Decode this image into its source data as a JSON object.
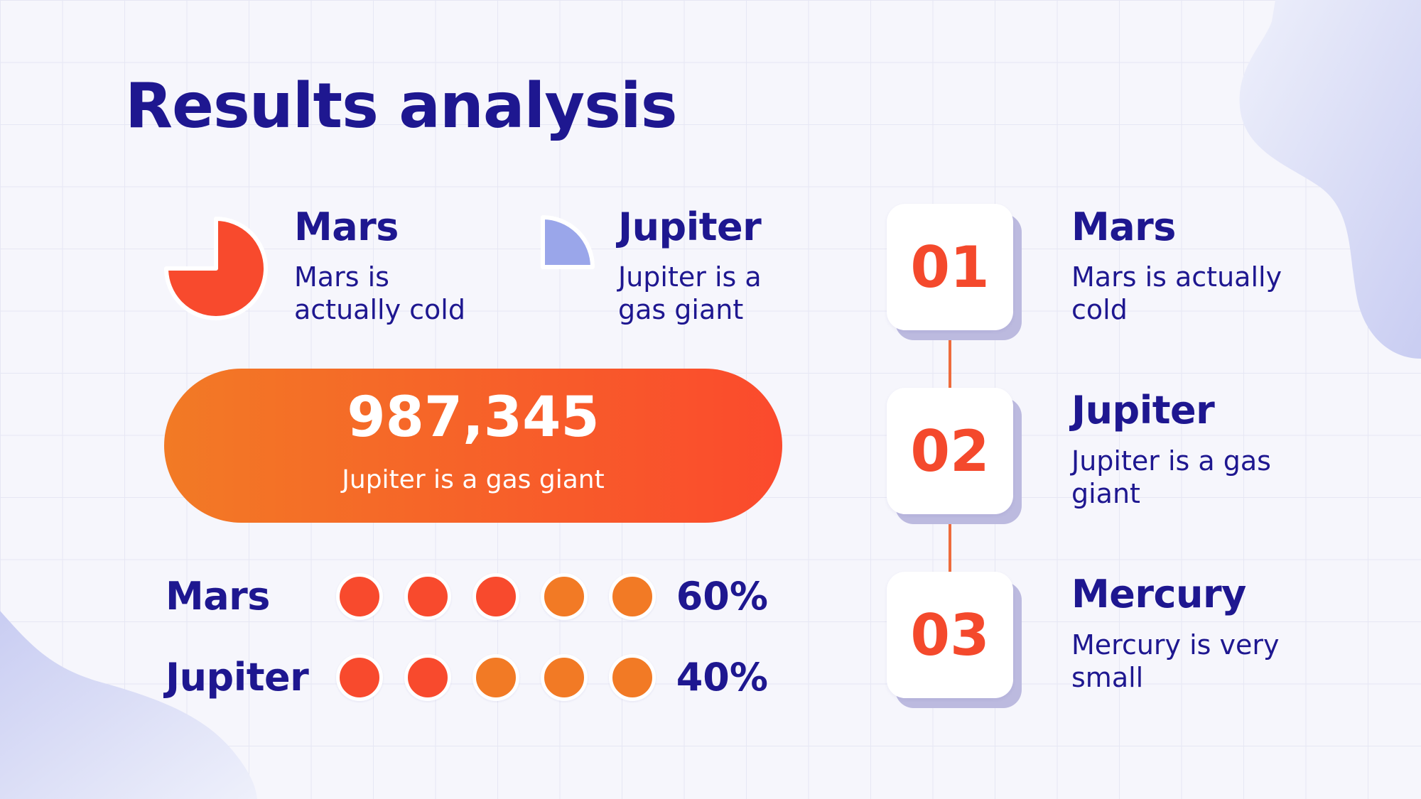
{
  "slide": {
    "title": "Results analysis"
  },
  "pie_items": [
    {
      "title": "Mars",
      "description": "Mars is actually cold",
      "fraction": 0.75,
      "color": "#f84a2d"
    },
    {
      "title": "Jupiter",
      "description": "Jupiter is a gas giant",
      "fraction": 0.25,
      "color": "#9aa6ea"
    }
  ],
  "highlight": {
    "value": "987,345",
    "label": "Jupiter is a gas giant"
  },
  "dot_rows": [
    {
      "label": "Mars",
      "percent": "60%",
      "filled": 3,
      "total": 5
    },
    {
      "label": "Jupiter",
      "percent": "40%",
      "filled": 2,
      "total": 5
    }
  ],
  "steps": [
    {
      "number": "01",
      "title": "Mars",
      "description": "Mars is actually cold"
    },
    {
      "number": "02",
      "title": "Jupiter",
      "description": "Jupiter is a gas giant"
    },
    {
      "number": "03",
      "title": "Mercury",
      "description": "Mercury is very small"
    }
  ],
  "colors": {
    "navy": "#1e1790",
    "accent_red": "#f84a2d",
    "accent_orange": "#f27a25",
    "lavender": "#9aa6ea",
    "shadow": "#bcbadf"
  }
}
